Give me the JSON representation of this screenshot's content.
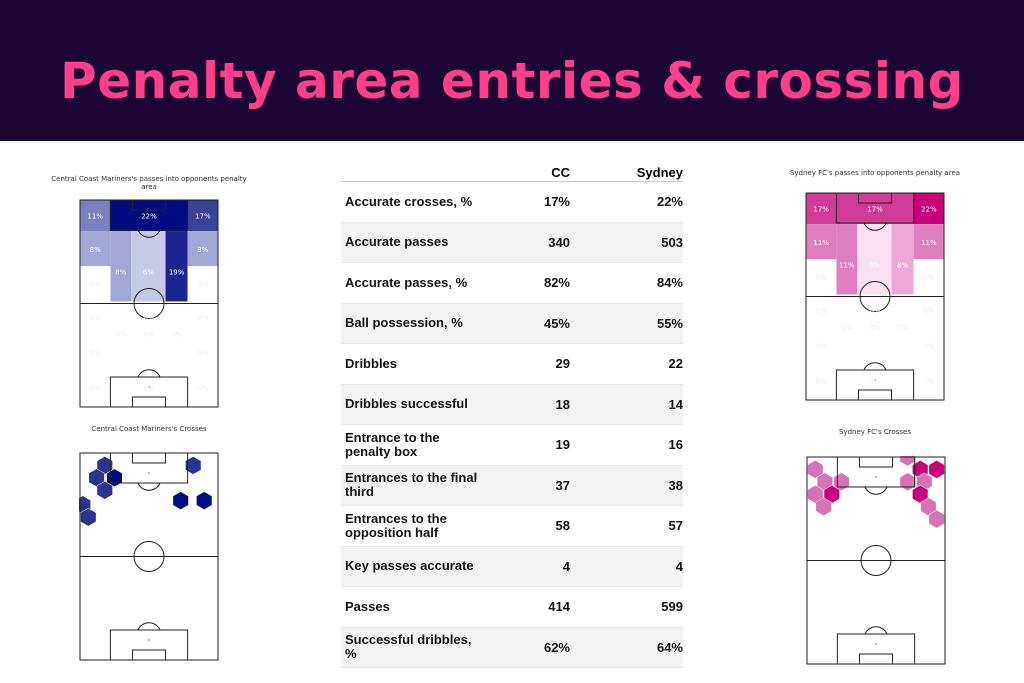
{
  "title": "Penalty area entries & crossing",
  "chart_data": [
    {
      "type": "heatmap",
      "title": "Central Coast Mariners's passes into opponents penalty area",
      "zones": [
        {
          "zone": "top-left",
          "label": "11%",
          "color": "#7a80c0"
        },
        {
          "zone": "top-center",
          "label": "22%",
          "color": "#000d80"
        },
        {
          "zone": "top-right",
          "label": "17%",
          "color": "#3b4399"
        },
        {
          "zone": "wing-left",
          "label": "8%",
          "color": "#a2a7d5"
        },
        {
          "zone": "halfspace-left",
          "label": "8%",
          "color": "#a2a7d5"
        },
        {
          "zone": "center",
          "label": "6%",
          "color": "#c6c9e5"
        },
        {
          "zone": "halfspace-right",
          "label": "19%",
          "color": "#1b2591"
        },
        {
          "zone": "wing-right",
          "label": "8%",
          "color": "#a2a7d5"
        },
        {
          "zone": "low-left",
          "label": "0%",
          "color": "#ffffff"
        },
        {
          "zone": "low-right",
          "label": "0%",
          "color": "#ffffff"
        }
      ],
      "empty_labels": [
        "0%",
        "0%",
        "0%",
        "0%",
        "0%",
        "0%",
        "0%",
        "0%",
        "0%",
        "0%",
        "0%"
      ]
    },
    {
      "type": "heatmap",
      "title": "Sydney FC's passes into opponents penalty area",
      "zones": [
        {
          "zone": "top-left",
          "label": "17%",
          "color": "#d23c98"
        },
        {
          "zone": "top-center",
          "label": "17%",
          "color": "#d23c98"
        },
        {
          "zone": "top-right",
          "label": "22%",
          "color": "#c8007a"
        },
        {
          "zone": "wing-left",
          "label": "11%",
          "color": "#e07fbf"
        },
        {
          "zone": "halfspace-left",
          "label": "11%",
          "color": "#e07fbf"
        },
        {
          "zone": "center",
          "label": "3%",
          "color": "#f9e1ef"
        },
        {
          "zone": "halfspace-right",
          "label": "8%",
          "color": "#eba9d6"
        },
        {
          "zone": "wing-right",
          "label": "11%",
          "color": "#e07fbf"
        },
        {
          "zone": "low-left",
          "label": "0%",
          "color": "#ffffff"
        },
        {
          "zone": "low-right",
          "label": "0%",
          "color": "#ffffff"
        }
      ],
      "empty_labels": [
        "0%",
        "0%",
        "0%",
        "0%",
        "0%",
        "0%",
        "0%",
        "0%",
        "0%",
        "0%",
        "0%"
      ]
    },
    {
      "type": "hexbin",
      "title": "Central Coast Mariners's Crosses",
      "colors": {
        "dark": "#000d80",
        "light": "#2b358f"
      }
    },
    {
      "type": "hexbin",
      "title": "Sydney FC's Crosses",
      "colors": {
        "dark": "#c8007a",
        "light": "#d673b4"
      }
    },
    {
      "type": "table",
      "columns": [
        "",
        "CC",
        "Sydney"
      ],
      "rows": [
        [
          "Accurate crosses, %",
          "17%",
          "22%"
        ],
        [
          "Accurate passes",
          "340",
          "503"
        ],
        [
          "Accurate passes, %",
          "82%",
          "84%"
        ],
        [
          "Ball possession, %",
          "45%",
          "55%"
        ],
        [
          "Dribbles",
          "29",
          "22"
        ],
        [
          "Dribbles successful",
          "18",
          "14"
        ],
        [
          "Entrance to the penalty box",
          "19",
          "16"
        ],
        [
          "Entrances to the final third",
          "37",
          "38"
        ],
        [
          "Entrances to the opposition half",
          "58",
          "57"
        ],
        [
          "Key passes accurate",
          "4",
          "4"
        ],
        [
          "Passes",
          "414",
          "599"
        ],
        [
          "Successful dribbles, %",
          "62%",
          "64%"
        ]
      ]
    }
  ]
}
